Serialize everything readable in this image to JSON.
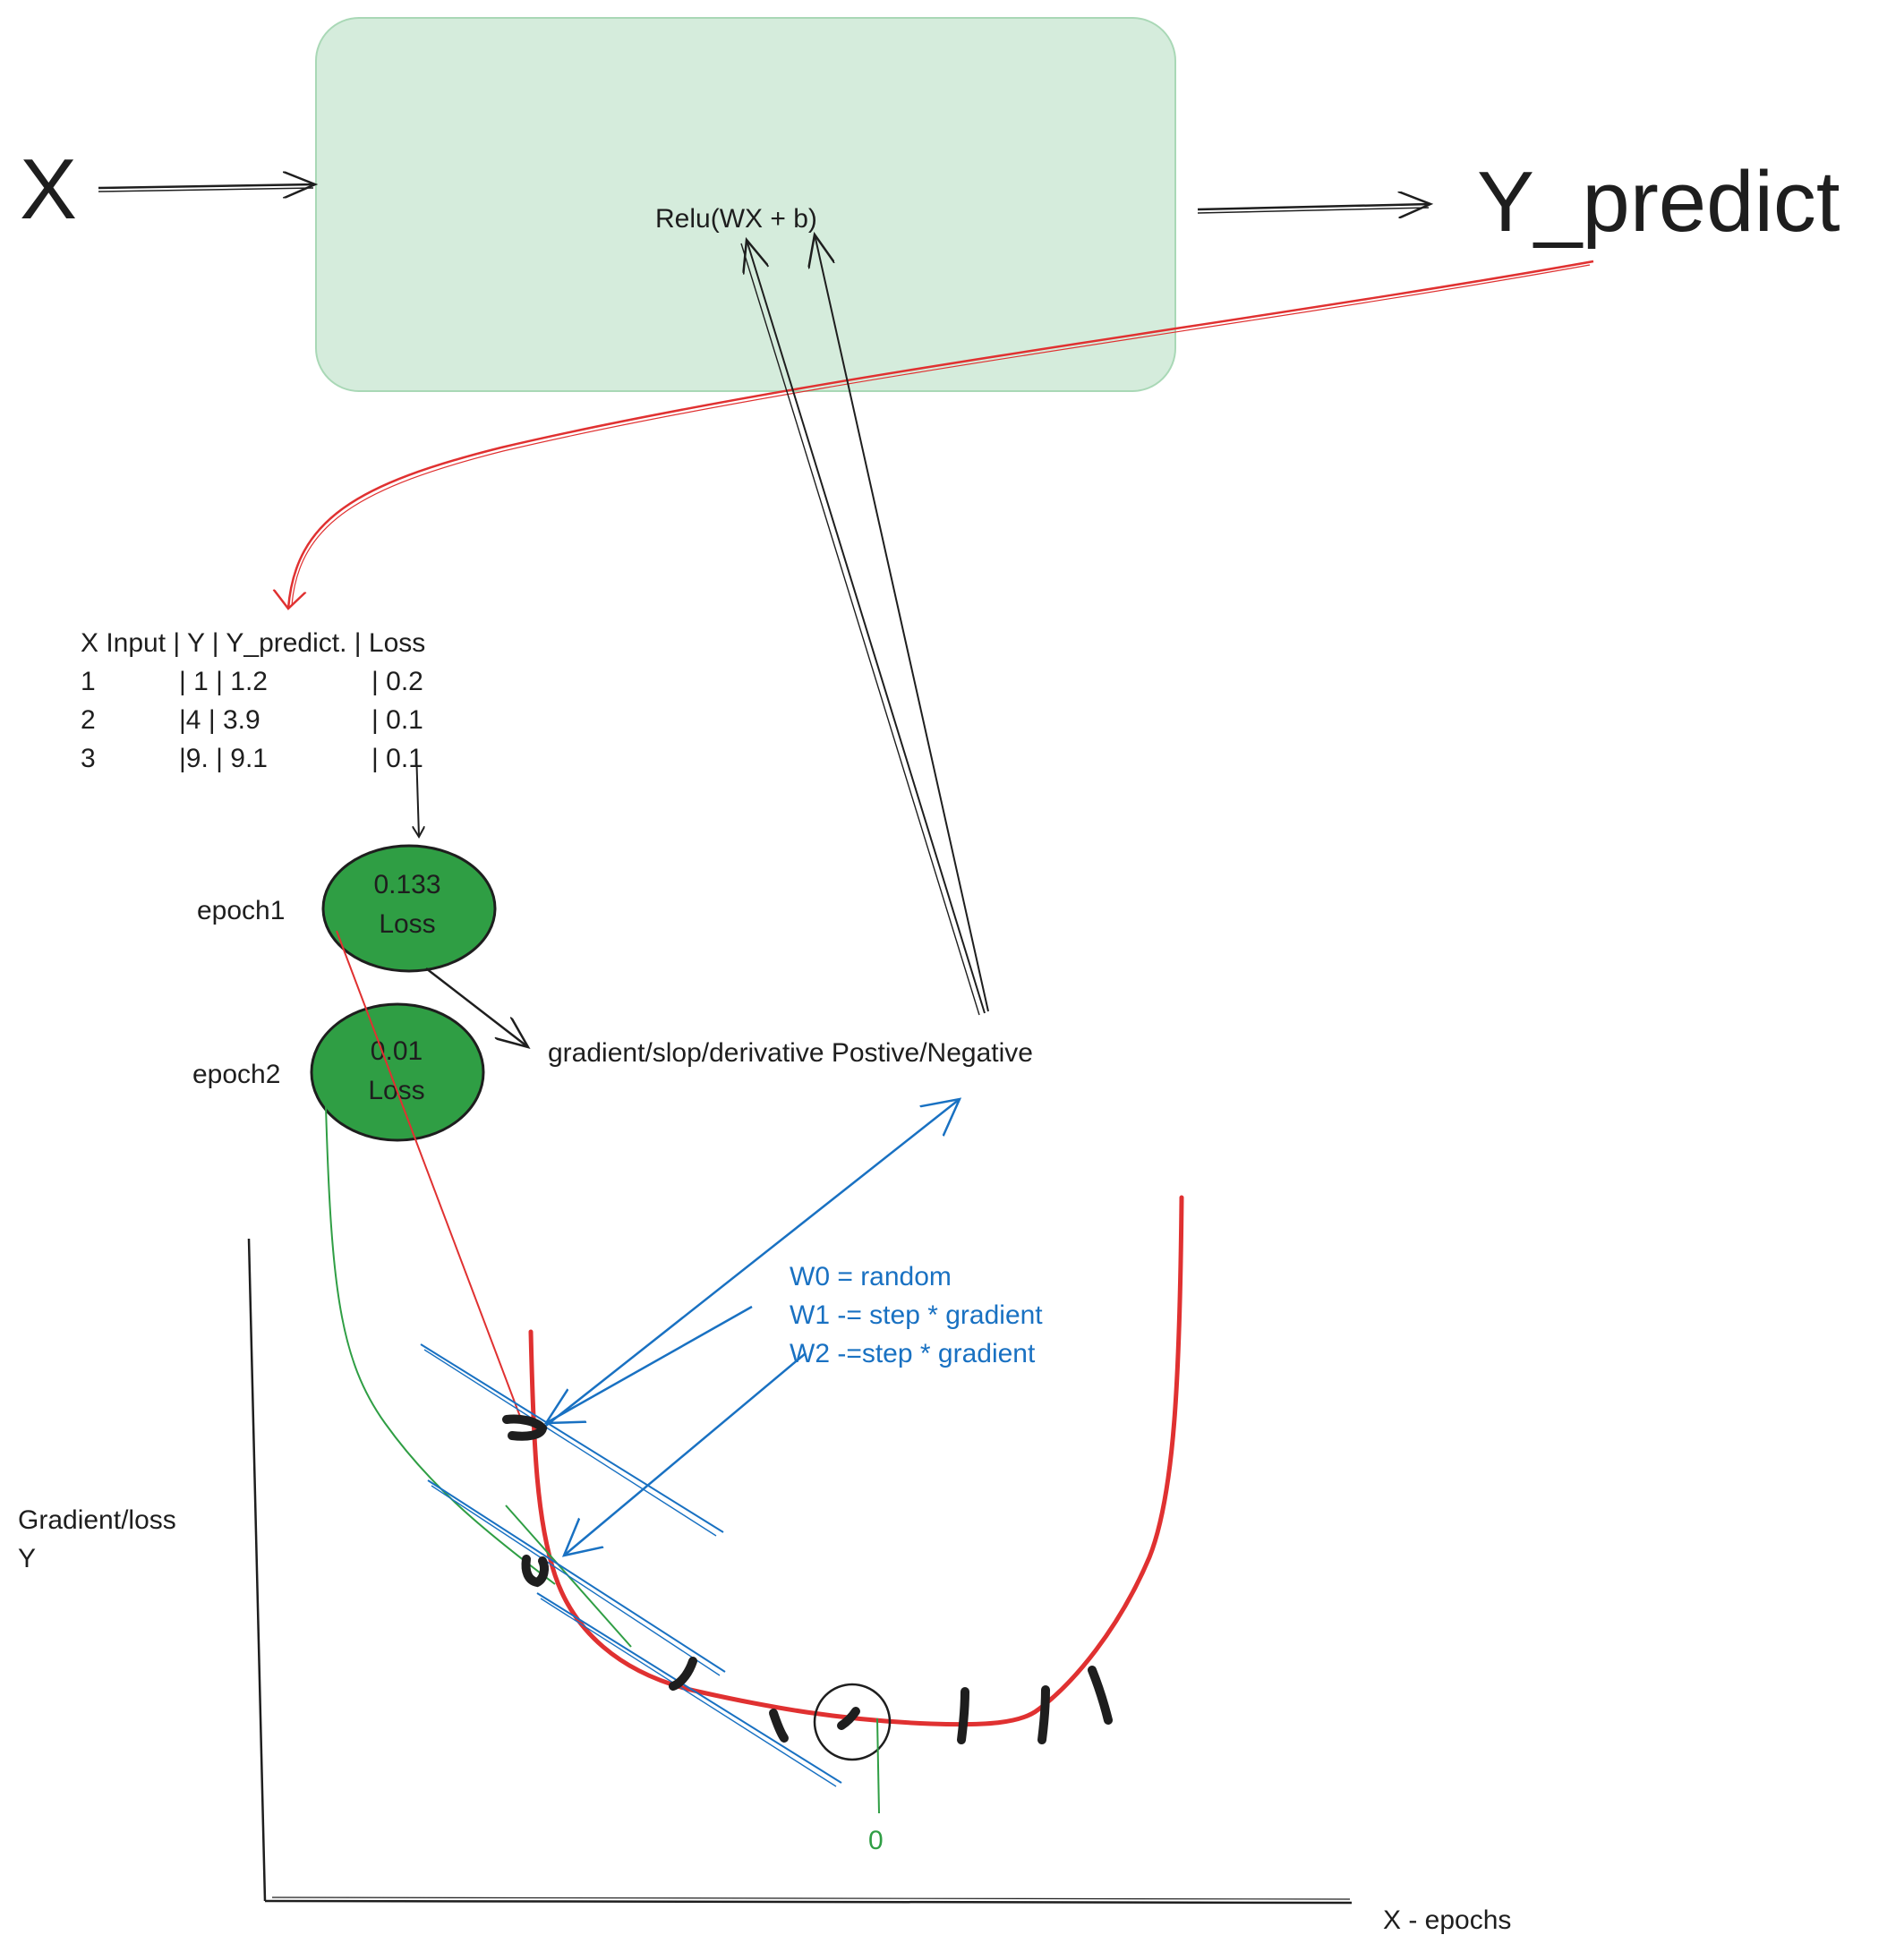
{
  "diagram": {
    "input_label": "X",
    "output_label": "Y_predict",
    "box_formula": "Relu(WX + b)",
    "table": {
      "header": "X Input | Y | Y_predict. | Loss",
      "rows": [
        {
          "x": "1",
          "y": "| 1 | 1.2",
          "loss": "| 0.2"
        },
        {
          "x": "2",
          "y": "|4  | 3.9",
          "loss": "| 0.1"
        },
        {
          "x": "3",
          "y": "|9. | 9.1",
          "loss": "| 0.1"
        }
      ]
    },
    "epochs": [
      {
        "label": "epoch1",
        "value": "0.133",
        "unit": "Loss"
      },
      {
        "label": "epoch2",
        "value": "0.01",
        "unit": "Loss"
      }
    ],
    "gradient_note": "gradient/slop/derivative Postive/Negative",
    "update_rules": [
      "W0 = random",
      "W1 -= step * gradient",
      "W2 -=step * gradient"
    ],
    "y_axis_label_line1": "Gradient/loss",
    "y_axis_label_line2": "Y",
    "x_axis_label": "X - epochs",
    "minimum_label": "0"
  },
  "colors": {
    "box_fill": "#d5ecdc",
    "box_stroke": "#a9d8b6",
    "epoch_fill": "#2f9e44",
    "red": "#e03131",
    "blue": "#1971c2",
    "green": "#2f9e44",
    "ink": "#1e1e1e"
  }
}
